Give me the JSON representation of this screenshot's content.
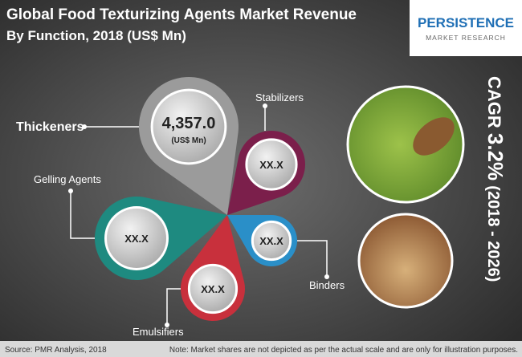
{
  "header": {
    "title": "Global Food Texturizing Agents Market Revenue",
    "subtitle": "By Function, 2018 (US$ Mn)"
  },
  "logo": {
    "name": "PERSISTENCE",
    "tagline": "MARKET RESEARCH"
  },
  "segments": [
    {
      "label": "Thickeners",
      "value": "4,357.0",
      "unit": "(US$ Mn)"
    },
    {
      "label": "Stabilizers",
      "value": "XX.X"
    },
    {
      "label": "Gelling Agents",
      "value": "XX.X"
    },
    {
      "label": "Emulsifiers",
      "value": "XX.X"
    },
    {
      "label": "Binders",
      "value": "XX.X"
    }
  ],
  "cagr": {
    "label": "CAGR",
    "value": "3.2%",
    "period": "(2018 - 2026)"
  },
  "footer": {
    "source": "Source: PMR Analysis, 2018",
    "note": "Note: Market shares are not depicted as per the actual scale and are only for illustration purposes."
  }
}
